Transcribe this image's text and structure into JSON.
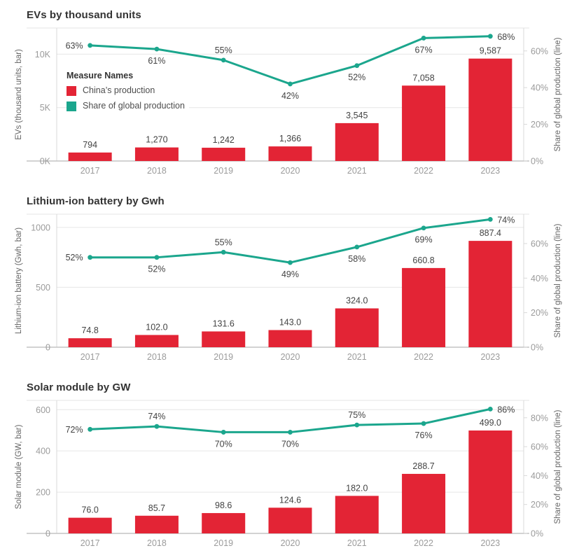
{
  "colors": {
    "bar": "#E32435",
    "line": "#1BA68D",
    "grid": "#E6E6E6",
    "border": "#D9D9D9",
    "axis_line": "#C4C4C4",
    "tick_text": "#9B9B9B",
    "axis_title_text": "#666666",
    "data_label_text": "#434343",
    "title_text": "#333333"
  },
  "legend": {
    "title": "Measure Names",
    "items": [
      {
        "label": "China’s production",
        "color": "#E32435"
      },
      {
        "label": "Share of global production",
        "color": "#1BA68D"
      }
    ]
  },
  "chart_data": [
    {
      "type": "bar+line",
      "title": "EVs by thousand units",
      "categories": [
        "2017",
        "2018",
        "2019",
        "2020",
        "2021",
        "2022",
        "2023"
      ],
      "series": [
        {
          "name": "China’s production",
          "type": "bar",
          "axis": "left",
          "values": [
            794,
            1270,
            1242,
            1366,
            3545,
            7058,
            9587
          ],
          "labels": [
            "794",
            "1,270",
            "1,242",
            "1,366",
            "3,545",
            "7,058",
            "9,587"
          ]
        },
        {
          "name": "Share of global production",
          "type": "line",
          "axis": "right",
          "values": [
            63,
            61,
            55,
            42,
            52,
            67,
            68
          ],
          "labels": [
            "63%",
            "61%",
            "55%",
            "42%",
            "52%",
            "67%",
            "68%"
          ],
          "label_pos": [
            "left",
            "below",
            "above",
            "below",
            "below",
            "below",
            "right"
          ]
        }
      ],
      "left_axis": {
        "title": "EVs (thousand units, bar)",
        "ticks": [
          0,
          5000,
          10000
        ],
        "tick_labels": [
          "0K",
          "5K",
          "10K"
        ],
        "max": 12450
      },
      "right_axis": {
        "title": "Share of global production (line)",
        "ticks": [
          0,
          20,
          40,
          60
        ],
        "tick_labels": [
          "0%",
          "20%",
          "40%",
          "60%"
        ],
        "max": 72.5
      },
      "grid": true,
      "legend_position": "inside-top-left"
    },
    {
      "type": "bar+line",
      "title": "Lithium-ion battery by Gwh",
      "categories": [
        "2017",
        "2018",
        "2019",
        "2020",
        "2021",
        "2022",
        "2023"
      ],
      "series": [
        {
          "name": "China’s production",
          "type": "bar",
          "axis": "left",
          "values": [
            74.8,
            102.0,
            131.6,
            143.0,
            324.0,
            660.8,
            887.4
          ],
          "labels": [
            "74.8",
            "102.0",
            "131.6",
            "143.0",
            "324.0",
            "660.8",
            "887.4"
          ]
        },
        {
          "name": "Share of global production",
          "type": "line",
          "axis": "right",
          "values": [
            52,
            52,
            55,
            49,
            58,
            69,
            74
          ],
          "labels": [
            "52%",
            "52%",
            "55%",
            "49%",
            "58%",
            "69%",
            "74%"
          ],
          "label_pos": [
            "left",
            "below",
            "above",
            "below",
            "below",
            "below",
            "right"
          ]
        }
      ],
      "left_axis": {
        "title": "Lithium-ion battery (Gwh, bar)",
        "ticks": [
          0,
          500,
          1000
        ],
        "tick_labels": [
          "0",
          "500",
          "1000"
        ],
        "max": 1110
      },
      "right_axis": {
        "title": "Share of global production (line)",
        "ticks": [
          0,
          20,
          40,
          60
        ],
        "tick_labels": [
          "0%",
          "20%",
          "40%",
          "60%"
        ],
        "max": 77
      },
      "grid": true,
      "legend_position": "none"
    },
    {
      "type": "bar+line",
      "title": "Solar module by GW",
      "categories": [
        "2017",
        "2018",
        "2019",
        "2020",
        "2021",
        "2022",
        "2023"
      ],
      "series": [
        {
          "name": "China’s production",
          "type": "bar",
          "axis": "left",
          "values": [
            76.0,
            85.7,
            98.6,
            124.6,
            182.0,
            288.7,
            499.0
          ],
          "labels": [
            "76.0",
            "85.7",
            "98.6",
            "124.6",
            "182.0",
            "288.7",
            "499.0"
          ]
        },
        {
          "name": "Share of global production",
          "type": "line",
          "axis": "right",
          "values": [
            72,
            74,
            70,
            70,
            75,
            76,
            86
          ],
          "labels": [
            "72%",
            "74%",
            "70%",
            "70%",
            "75%",
            "76%",
            "86%"
          ],
          "label_pos": [
            "left",
            "above",
            "below",
            "below",
            "above",
            "below",
            "right"
          ]
        }
      ],
      "left_axis": {
        "title": "Solar module (GW, bar)",
        "ticks": [
          0,
          200,
          400,
          600
        ],
        "tick_labels": [
          "0",
          "200",
          "400",
          "600"
        ],
        "max": 645
      },
      "right_axis": {
        "title": "Share of global production (line)",
        "ticks": [
          0,
          20,
          40,
          60,
          80
        ],
        "tick_labels": [
          "0%",
          "20%",
          "40%",
          "60%",
          "80%"
        ],
        "max": 92
      },
      "grid": true,
      "legend_position": "none"
    }
  ]
}
